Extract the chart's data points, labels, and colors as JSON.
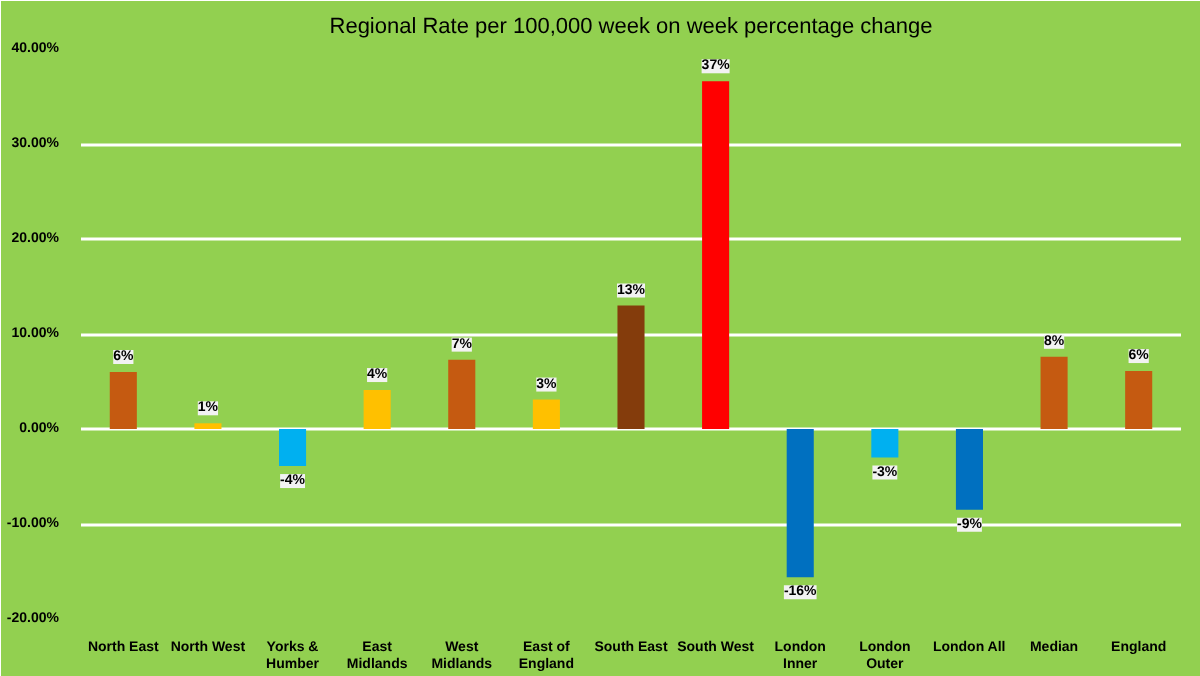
{
  "chart_data": {
    "type": "bar",
    "title": "Regional Rate per 100,000 week on week percentage change",
    "categories": [
      "North East",
      "North West",
      "Yorks & Humber",
      "East Midlands",
      "West Midlands",
      "East of England",
      "South East",
      "South West",
      "London Inner",
      "London Outer",
      "London All",
      "Median",
      "England"
    ],
    "values": [
      6.0,
      0.6,
      -3.9,
      4.1,
      7.3,
      3.1,
      13.0,
      36.6,
      -15.6,
      -3.0,
      -8.5,
      7.6,
      6.1
    ],
    "value_labels": [
      "6%",
      "1%",
      "-4%",
      "4%",
      "7%",
      "3%",
      "13%",
      "37%",
      "-16%",
      "-3%",
      "-9%",
      "8%",
      "6%"
    ],
    "colors": [
      "#c55a11",
      "#ffc000",
      "#00b0f0",
      "#ffc000",
      "#c55a11",
      "#ffc000",
      "#843c0c",
      "#ff0000",
      "#0070c0",
      "#00b0f0",
      "#0070c0",
      "#c55a11",
      "#c55a11"
    ],
    "ylim": [
      -20,
      40
    ],
    "yticks": [
      {
        "value": -20,
        "label": "-20.00%"
      },
      {
        "value": -10,
        "label": "-10.00%"
      },
      {
        "value": 0,
        "label": "0.00%"
      },
      {
        "value": 10,
        "label": "10.00%"
      },
      {
        "value": 20,
        "label": "20.00%"
      },
      {
        "value": 30,
        "label": "30.00%"
      },
      {
        "value": 40,
        "label": "40.00%"
      }
    ],
    "grid": "y"
  }
}
